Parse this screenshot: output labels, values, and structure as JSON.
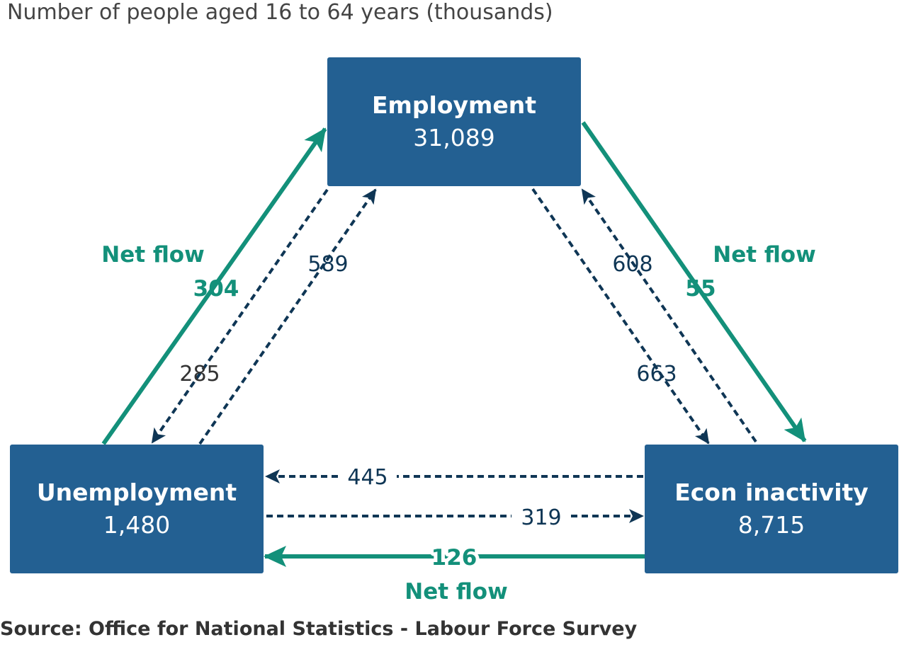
{
  "subtitle": "Number of people aged 16 to 64 years (thousands)",
  "source": "Source: Office for National Statistics - Labour Force Survey",
  "colors": {
    "box": "#236092",
    "net_flow": "#13907a",
    "gross_flow": "#0f3655"
  },
  "nodes": {
    "employment": {
      "name": "Employment",
      "value": "31,089"
    },
    "unemployment": {
      "name": "Unemployment",
      "value": "1,480"
    },
    "inactivity": {
      "name": "Econ inactivity",
      "value": "8,715"
    }
  },
  "flows": {
    "emp_to_unemp": "285",
    "unemp_to_emp": "589",
    "emp_to_inact": "663",
    "inact_to_emp": "608",
    "inact_to_unemp": "445",
    "unemp_to_inact": "319"
  },
  "net_flows": {
    "label": "Net flow",
    "unemp_to_emp": "304",
    "emp_to_inact": "55",
    "inact_to_unemp": "126"
  }
}
